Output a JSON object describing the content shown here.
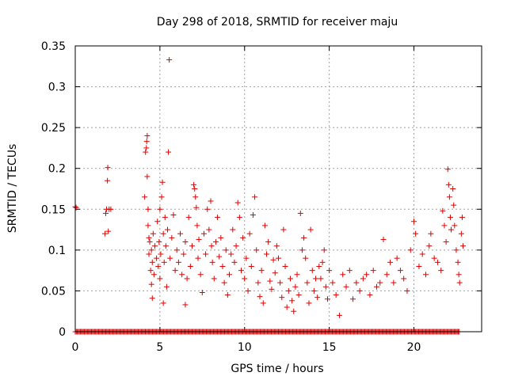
{
  "chart_data": {
    "type": "scatter",
    "title": "Day 298 of 2018, SRMTID for receiver maju",
    "xlabel": "GPS time / hours",
    "ylabel": "SRMTID / TECUs",
    "xlim": [
      0,
      24
    ],
    "ylim": [
      0,
      0.35
    ],
    "xticks": [
      0,
      5,
      10,
      15,
      20
    ],
    "xtick_labels": [
      "0",
      "5",
      "10",
      "15",
      "20"
    ],
    "yticks": [
      0,
      0.05,
      0.1,
      0.15,
      0.2,
      0.25,
      0.3,
      0.35
    ],
    "ytick_labels": [
      "0",
      "0.05",
      "0.1",
      "0.15",
      "0.2",
      "0.25",
      "0.3",
      "0.35"
    ],
    "grid": true,
    "marker": "+",
    "color": "#e00000",
    "series": [
      {
        "name": "SRMTID",
        "points": [
          [
            0.0,
            0.153
          ],
          [
            0.05,
            0.152
          ],
          [
            1.75,
            0.12
          ],
          [
            1.8,
            0.145
          ],
          [
            1.85,
            0.15
          ],
          [
            1.9,
            0.185
          ],
          [
            1.92,
            0.201
          ],
          [
            1.95,
            0.123
          ],
          [
            2.0,
            0.15
          ],
          [
            2.1,
            0.15
          ],
          [
            4.1,
            0.165
          ],
          [
            4.15,
            0.22
          ],
          [
            4.2,
            0.225
          ],
          [
            4.22,
            0.233
          ],
          [
            4.25,
            0.24
          ],
          [
            4.25,
            0.19
          ],
          [
            4.3,
            0.15
          ],
          [
            4.3,
            0.13
          ],
          [
            4.35,
            0.115
          ],
          [
            4.35,
            0.095
          ],
          [
            4.4,
            0.11
          ],
          [
            4.45,
            0.075
          ],
          [
            4.5,
            0.1
          ],
          [
            4.5,
            0.058
          ],
          [
            4.55,
            0.085
          ],
          [
            4.55,
            0.041
          ],
          [
            4.6,
            0.12
          ],
          [
            4.65,
            0.07
          ],
          [
            4.7,
            0.105
          ],
          [
            4.8,
            0.09
          ],
          [
            4.85,
            0.135
          ],
          [
            4.9,
            0.08
          ],
          [
            4.95,
            0.11
          ],
          [
            5.0,
            0.15
          ],
          [
            5.0,
            0.065
          ],
          [
            5.05,
            0.095
          ],
          [
            5.1,
            0.165
          ],
          [
            5.15,
            0.183
          ],
          [
            5.2,
            0.12
          ],
          [
            5.2,
            0.035
          ],
          [
            5.25,
            0.085
          ],
          [
            5.3,
            0.14
          ],
          [
            5.35,
            0.105
          ],
          [
            5.4,
            0.055
          ],
          [
            5.45,
            0.125
          ],
          [
            5.5,
            0.22
          ],
          [
            5.55,
            0.333
          ],
          [
            5.6,
            0.09
          ],
          [
            5.7,
            0.115
          ],
          [
            5.8,
            0.143
          ],
          [
            5.9,
            0.075
          ],
          [
            6.0,
            0.1
          ],
          [
            6.1,
            0.085
          ],
          [
            6.2,
            0.12
          ],
          [
            6.3,
            0.07
          ],
          [
            6.4,
            0.095
          ],
          [
            6.5,
            0.033
          ],
          [
            6.5,
            0.11
          ],
          [
            6.6,
            0.065
          ],
          [
            6.7,
            0.14
          ],
          [
            6.8,
            0.08
          ],
          [
            6.9,
            0.105
          ],
          [
            7.0,
            0.18
          ],
          [
            7.05,
            0.175
          ],
          [
            7.1,
            0.165
          ],
          [
            7.15,
            0.152
          ],
          [
            7.2,
            0.13
          ],
          [
            7.25,
            0.09
          ],
          [
            7.3,
            0.113
          ],
          [
            7.4,
            0.07
          ],
          [
            7.5,
            0.048
          ],
          [
            7.6,
            0.12
          ],
          [
            7.7,
            0.095
          ],
          [
            7.8,
            0.15
          ],
          [
            7.9,
            0.125
          ],
          [
            8.0,
            0.16
          ],
          [
            8.05,
            0.105
          ],
          [
            8.1,
            0.085
          ],
          [
            8.2,
            0.065
          ],
          [
            8.3,
            0.11
          ],
          [
            8.4,
            0.14
          ],
          [
            8.5,
            0.092
          ],
          [
            8.6,
            0.115
          ],
          [
            8.7,
            0.08
          ],
          [
            8.8,
            0.06
          ],
          [
            8.9,
            0.1
          ],
          [
            9.0,
            0.045
          ],
          [
            9.1,
            0.07
          ],
          [
            9.2,
            0.095
          ],
          [
            9.3,
            0.125
          ],
          [
            9.4,
            0.085
          ],
          [
            9.5,
            0.105
          ],
          [
            9.6,
            0.158
          ],
          [
            9.7,
            0.14
          ],
          [
            9.8,
            0.075
          ],
          [
            9.9,
            0.115
          ],
          [
            10.0,
            0.065
          ],
          [
            10.1,
            0.09
          ],
          [
            10.2,
            0.05
          ],
          [
            10.3,
            0.12
          ],
          [
            10.4,
            0.08
          ],
          [
            10.5,
            0.143
          ],
          [
            10.6,
            0.165
          ],
          [
            10.7,
            0.1
          ],
          [
            10.8,
            0.06
          ],
          [
            10.9,
            0.043
          ],
          [
            11.0,
            0.075
          ],
          [
            11.1,
            0.035
          ],
          [
            11.2,
            0.13
          ],
          [
            11.3,
            0.095
          ],
          [
            11.4,
            0.11
          ],
          [
            11.5,
            0.062
          ],
          [
            11.6,
            0.052
          ],
          [
            11.7,
            0.088
          ],
          [
            11.8,
            0.072
          ],
          [
            11.9,
            0.105
          ],
          [
            12.0,
            0.09
          ],
          [
            12.1,
            0.06
          ],
          [
            12.2,
            0.042
          ],
          [
            12.3,
            0.125
          ],
          [
            12.4,
            0.08
          ],
          [
            12.5,
            0.03
          ],
          [
            12.6,
            0.05
          ],
          [
            12.7,
            0.065
          ],
          [
            12.8,
            0.038
          ],
          [
            12.9,
            0.025
          ],
          [
            13.0,
            0.055
          ],
          [
            13.1,
            0.07
          ],
          [
            13.2,
            0.045
          ],
          [
            13.3,
            0.145
          ],
          [
            13.4,
            0.1
          ],
          [
            13.5,
            0.115
          ],
          [
            13.6,
            0.09
          ],
          [
            13.7,
            0.06
          ],
          [
            13.8,
            0.035
          ],
          [
            13.9,
            0.125
          ],
          [
            14.0,
            0.075
          ],
          [
            14.1,
            0.05
          ],
          [
            14.2,
            0.065
          ],
          [
            14.3,
            0.042
          ],
          [
            14.4,
            0.08
          ],
          [
            14.5,
            0.065
          ],
          [
            14.6,
            0.085
          ],
          [
            14.7,
            0.1
          ],
          [
            14.8,
            0.055
          ],
          [
            14.9,
            0.04
          ],
          [
            15.0,
            0.075
          ],
          [
            15.2,
            0.06
          ],
          [
            15.4,
            0.045
          ],
          [
            15.6,
            0.02
          ],
          [
            15.8,
            0.07
          ],
          [
            16.0,
            0.055
          ],
          [
            16.2,
            0.075
          ],
          [
            16.4,
            0.04
          ],
          [
            16.6,
            0.06
          ],
          [
            16.8,
            0.05
          ],
          [
            17.0,
            0.065
          ],
          [
            17.2,
            0.07
          ],
          [
            17.4,
            0.045
          ],
          [
            17.6,
            0.075
          ],
          [
            17.8,
            0.055
          ],
          [
            18.0,
            0.06
          ],
          [
            18.2,
            0.113
          ],
          [
            18.4,
            0.07
          ],
          [
            18.6,
            0.085
          ],
          [
            18.8,
            0.06
          ],
          [
            19.0,
            0.09
          ],
          [
            19.2,
            0.075
          ],
          [
            19.4,
            0.065
          ],
          [
            19.6,
            0.05
          ],
          [
            19.8,
            0.1
          ],
          [
            20.0,
            0.135
          ],
          [
            20.1,
            0.12
          ],
          [
            20.3,
            0.08
          ],
          [
            20.5,
            0.095
          ],
          [
            20.7,
            0.07
          ],
          [
            20.9,
            0.105
          ],
          [
            21.0,
            0.12
          ],
          [
            21.2,
            0.09
          ],
          [
            21.4,
            0.085
          ],
          [
            21.6,
            0.075
          ],
          [
            21.7,
            0.148
          ],
          [
            21.8,
            0.13
          ],
          [
            21.9,
            0.11
          ],
          [
            22.0,
            0.199
          ],
          [
            22.05,
            0.18
          ],
          [
            22.1,
            0.165
          ],
          [
            22.15,
            0.14
          ],
          [
            22.2,
            0.125
          ],
          [
            22.3,
            0.175
          ],
          [
            22.35,
            0.155
          ],
          [
            22.4,
            0.13
          ],
          [
            22.5,
            0.1
          ],
          [
            22.6,
            0.085
          ],
          [
            22.65,
            0.07
          ],
          [
            22.7,
            0.06
          ],
          [
            22.8,
            0.12
          ],
          [
            22.85,
            0.14
          ],
          [
            22.9,
            0.105
          ]
        ]
      }
    ],
    "zero_band": {
      "y": 0,
      "x_from": 0,
      "x_to": 22.7
    }
  }
}
